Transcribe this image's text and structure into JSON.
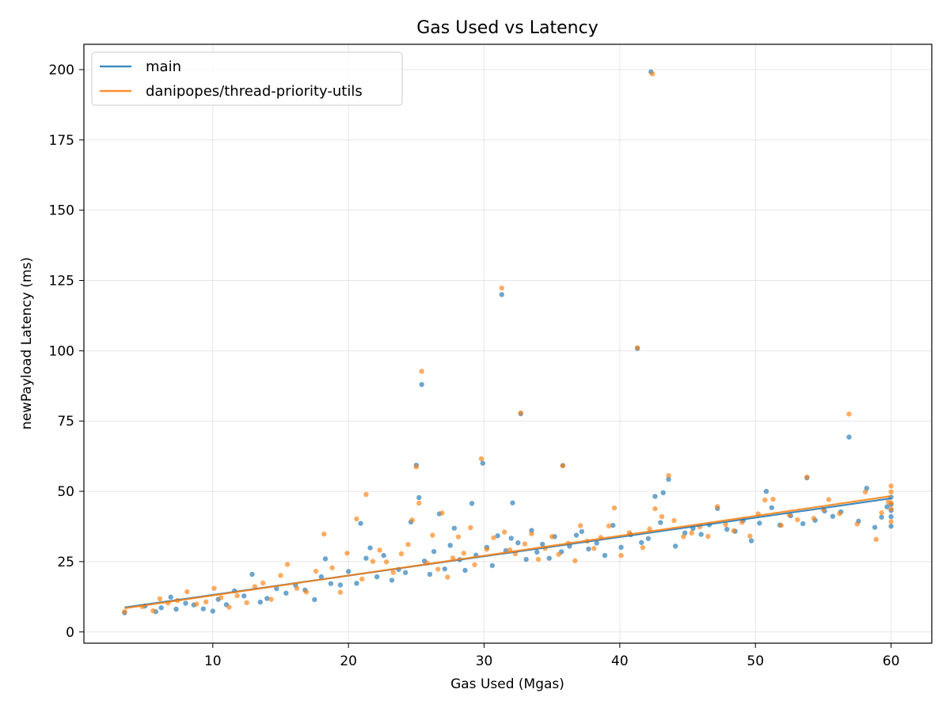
{
  "chart_data": {
    "type": "scatter",
    "title": "Gas Used vs Latency",
    "xlabel": "Gas Used (Mgas)",
    "ylabel": "newPayload Latency (ms)",
    "xlim": [
      0.5,
      63
    ],
    "ylim": [
      -4,
      209
    ],
    "xticks": [
      10,
      20,
      30,
      40,
      50,
      60
    ],
    "yticks": [
      0,
      25,
      50,
      75,
      100,
      125,
      150,
      175,
      200
    ],
    "grid": true,
    "legend_position": "top-left",
    "series": [
      {
        "name": "main",
        "color": "#1f77b4",
        "trend": {
          "x": [
            3.5,
            60
          ],
          "y": [
            8.7,
            47.5
          ]
        },
        "points": [
          [
            3.5,
            6.8
          ],
          [
            5.0,
            9.2
          ],
          [
            5.8,
            7.2
          ],
          [
            6.2,
            8.6
          ],
          [
            6.9,
            12.4
          ],
          [
            7.3,
            8.1
          ],
          [
            8.0,
            10.2
          ],
          [
            8.6,
            9.6
          ],
          [
            9.3,
            8.2
          ],
          [
            10.0,
            7.4
          ],
          [
            10.4,
            11.6
          ],
          [
            11.0,
            9.7
          ],
          [
            11.6,
            14.6
          ],
          [
            12.3,
            12.8
          ],
          [
            12.9,
            20.5
          ],
          [
            13.5,
            10.6
          ],
          [
            14.0,
            11.9
          ],
          [
            14.7,
            15.4
          ],
          [
            15.4,
            13.8
          ],
          [
            16.1,
            16.6
          ],
          [
            16.8,
            14.9
          ],
          [
            17.5,
            11.5
          ],
          [
            18.0,
            19.6
          ],
          [
            18.3,
            26.0
          ],
          [
            18.7,
            17.2
          ],
          [
            19.4,
            16.7
          ],
          [
            20.0,
            21.5
          ],
          [
            20.6,
            17.3
          ],
          [
            20.9,
            38.6
          ],
          [
            21.3,
            26.2
          ],
          [
            21.6,
            29.9
          ],
          [
            22.1,
            19.6
          ],
          [
            22.6,
            27.2
          ],
          [
            23.2,
            18.4
          ],
          [
            23.7,
            22.2
          ],
          [
            24.2,
            21.1
          ],
          [
            24.6,
            39.1
          ],
          [
            25.0,
            59.3
          ],
          [
            25.2,
            47.8
          ],
          [
            25.4,
            88.0
          ],
          [
            25.6,
            25.2
          ],
          [
            26.0,
            20.5
          ],
          [
            26.3,
            28.6
          ],
          [
            26.7,
            42.0
          ],
          [
            27.1,
            22.4
          ],
          [
            27.5,
            30.8
          ],
          [
            27.8,
            36.9
          ],
          [
            28.2,
            25.7
          ],
          [
            28.6,
            21.9
          ],
          [
            29.1,
            45.7
          ],
          [
            29.4,
            27.3
          ],
          [
            29.9,
            60.0
          ],
          [
            30.2,
            30.1
          ],
          [
            30.6,
            23.6
          ],
          [
            31.0,
            34.2
          ],
          [
            31.3,
            120.0
          ],
          [
            31.6,
            28.9
          ],
          [
            32.0,
            33.3
          ],
          [
            32.1,
            45.9
          ],
          [
            32.5,
            31.7
          ],
          [
            32.7,
            77.6
          ],
          [
            33.1,
            25.8
          ],
          [
            33.5,
            36.1
          ],
          [
            33.9,
            28.4
          ],
          [
            34.3,
            31.2
          ],
          [
            34.8,
            26.2
          ],
          [
            35.2,
            33.9
          ],
          [
            35.7,
            28.5
          ],
          [
            35.8,
            59.2
          ],
          [
            36.3,
            30.5
          ],
          [
            36.8,
            34.4
          ],
          [
            37.2,
            35.7
          ],
          [
            37.7,
            29.5
          ],
          [
            38.3,
            31.6
          ],
          [
            38.9,
            27.2
          ],
          [
            39.5,
            37.9
          ],
          [
            40.1,
            30.1
          ],
          [
            40.8,
            34.6
          ],
          [
            41.3,
            100.8
          ],
          [
            41.6,
            31.8
          ],
          [
            42.1,
            33.2
          ],
          [
            42.3,
            199.2
          ],
          [
            42.6,
            48.2
          ],
          [
            43.0,
            38.9
          ],
          [
            43.2,
            49.5
          ],
          [
            43.6,
            54.3
          ],
          [
            44.1,
            30.5
          ],
          [
            44.8,
            35.2
          ],
          [
            45.4,
            36.8
          ],
          [
            46.0,
            34.7
          ],
          [
            46.6,
            38.1
          ],
          [
            47.2,
            43.9
          ],
          [
            47.9,
            36.5
          ],
          [
            48.5,
            35.8
          ],
          [
            49.1,
            39.6
          ],
          [
            49.7,
            32.4
          ],
          [
            50.3,
            38.7
          ],
          [
            50.8,
            50.0
          ],
          [
            51.2,
            44.2
          ],
          [
            51.8,
            38.0
          ],
          [
            52.6,
            41.3
          ],
          [
            53.5,
            38.5
          ],
          [
            53.8,
            54.8
          ],
          [
            54.4,
            39.7
          ],
          [
            55.1,
            43.0
          ],
          [
            55.7,
            41.1
          ],
          [
            56.3,
            42.7
          ],
          [
            56.9,
            69.3
          ],
          [
            57.6,
            39.4
          ],
          [
            58.2,
            51.1
          ],
          [
            58.8,
            37.2
          ],
          [
            59.3,
            40.8
          ],
          [
            59.7,
            44.5
          ],
          [
            60.0,
            37.6
          ],
          [
            60.0,
            47.9
          ],
          [
            60.0,
            43.2
          ],
          [
            60.0,
            41.0
          ],
          [
            60.0,
            45.4
          ]
        ]
      },
      {
        "name": "danipopes/thread-priority-utils",
        "color": "#ff7f0e",
        "trend": {
          "x": [
            3.5,
            60
          ],
          "y": [
            8.4,
            48.3
          ]
        },
        "points": [
          [
            3.5,
            7.2
          ],
          [
            4.8,
            9.0
          ],
          [
            5.6,
            7.5
          ],
          [
            6.1,
            11.8
          ],
          [
            6.7,
            10.3
          ],
          [
            7.4,
            11.2
          ],
          [
            8.1,
            14.3
          ],
          [
            8.8,
            9.9
          ],
          [
            9.5,
            10.7
          ],
          [
            10.1,
            15.5
          ],
          [
            10.6,
            12.2
          ],
          [
            11.2,
            8.8
          ],
          [
            11.8,
            12.9
          ],
          [
            12.5,
            10.4
          ],
          [
            13.1,
            16.1
          ],
          [
            13.7,
            17.4
          ],
          [
            14.3,
            11.6
          ],
          [
            15.0,
            20.1
          ],
          [
            15.5,
            24.0
          ],
          [
            16.2,
            15.5
          ],
          [
            16.9,
            14.2
          ],
          [
            17.6,
            21.6
          ],
          [
            18.2,
            34.8
          ],
          [
            18.8,
            22.8
          ],
          [
            19.4,
            14.1
          ],
          [
            19.9,
            28.0
          ],
          [
            20.6,
            40.2
          ],
          [
            21.0,
            18.8
          ],
          [
            21.3,
            48.9
          ],
          [
            21.8,
            25.1
          ],
          [
            22.3,
            29.1
          ],
          [
            22.8,
            24.9
          ],
          [
            23.3,
            21.2
          ],
          [
            23.9,
            27.8
          ],
          [
            24.4,
            31.1
          ],
          [
            24.7,
            39.8
          ],
          [
            25.0,
            58.7
          ],
          [
            25.2,
            45.8
          ],
          [
            25.4,
            92.7
          ],
          [
            25.8,
            24.5
          ],
          [
            26.2,
            34.4
          ],
          [
            26.6,
            22.3
          ],
          [
            26.9,
            42.3
          ],
          [
            27.3,
            19.5
          ],
          [
            27.7,
            26.3
          ],
          [
            28.1,
            33.8
          ],
          [
            28.5,
            28.0
          ],
          [
            29.0,
            37.1
          ],
          [
            29.3,
            23.9
          ],
          [
            29.8,
            61.6
          ],
          [
            30.2,
            29.4
          ],
          [
            30.7,
            33.5
          ],
          [
            31.3,
            122.3
          ],
          [
            31.5,
            35.5
          ],
          [
            31.9,
            29.2
          ],
          [
            32.3,
            27.8
          ],
          [
            32.7,
            77.9
          ],
          [
            33.0,
            31.3
          ],
          [
            33.5,
            34.9
          ],
          [
            34.0,
            25.8
          ],
          [
            34.5,
            29.7
          ],
          [
            35.0,
            33.9
          ],
          [
            35.5,
            27.6
          ],
          [
            35.8,
            59.1
          ],
          [
            36.2,
            31.5
          ],
          [
            36.7,
            25.3
          ],
          [
            37.1,
            37.8
          ],
          [
            37.6,
            32.3
          ],
          [
            38.1,
            29.7
          ],
          [
            38.6,
            33.6
          ],
          [
            39.2,
            37.7
          ],
          [
            39.6,
            44.1
          ],
          [
            40.1,
            27.2
          ],
          [
            40.7,
            35.3
          ],
          [
            41.3,
            101.1
          ],
          [
            41.7,
            30.0
          ],
          [
            42.2,
            36.6
          ],
          [
            42.4,
            198.5
          ],
          [
            42.6,
            43.8
          ],
          [
            43.1,
            41.0
          ],
          [
            43.6,
            55.6
          ],
          [
            44.0,
            39.6
          ],
          [
            44.7,
            33.9
          ],
          [
            45.3,
            35.2
          ],
          [
            45.9,
            37.4
          ],
          [
            46.5,
            34.0
          ],
          [
            47.2,
            44.6
          ],
          [
            47.8,
            38.2
          ],
          [
            48.4,
            36.0
          ],
          [
            49.0,
            39.0
          ],
          [
            49.6,
            34.1
          ],
          [
            50.2,
            42.0
          ],
          [
            50.7,
            46.9
          ],
          [
            51.3,
            47.2
          ],
          [
            51.9,
            37.9
          ],
          [
            52.5,
            41.6
          ],
          [
            53.1,
            39.9
          ],
          [
            53.8,
            55.1
          ],
          [
            54.3,
            40.4
          ],
          [
            55.0,
            43.6
          ],
          [
            55.4,
            47.1
          ],
          [
            56.2,
            42.1
          ],
          [
            56.9,
            77.5
          ],
          [
            57.5,
            38.4
          ],
          [
            58.1,
            49.8
          ],
          [
            58.9,
            32.9
          ],
          [
            59.3,
            42.4
          ],
          [
            59.8,
            46.2
          ],
          [
            60.0,
            51.9
          ],
          [
            60.0,
            49.8
          ],
          [
            60.0,
            39.2
          ],
          [
            60.0,
            43.7
          ],
          [
            60.0,
            45.9
          ]
        ]
      }
    ]
  }
}
